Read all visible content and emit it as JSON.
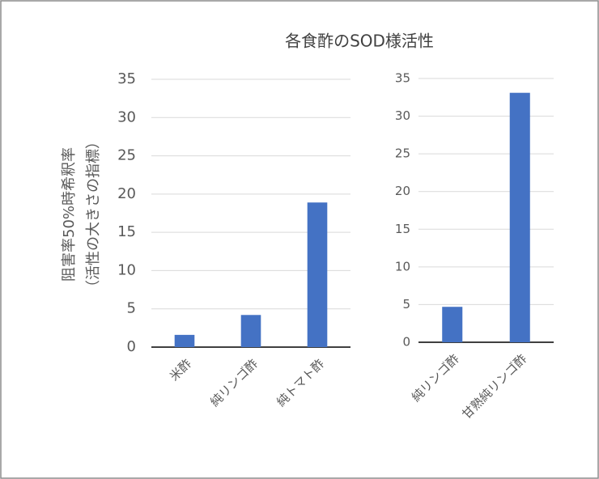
{
  "chart_data": [
    {
      "type": "bar",
      "title": "各食酢のSOD様活性",
      "ylabel": [
        "阻害率50%時希釈率",
        "（活性の大きさの指標）"
      ],
      "categories": [
        "米酢",
        "純リンゴ酢",
        "純トマト酢"
      ],
      "values": [
        1.6,
        4.2,
        18.9
      ],
      "color": "#4472c4",
      "ylim": [
        0,
        35
      ],
      "yticks": [
        0,
        5,
        10,
        15,
        20,
        25,
        30,
        35
      ],
      "grid": true
    },
    {
      "type": "bar",
      "categories": [
        "純リンゴ酢",
        "甘熟純リンゴ酢"
      ],
      "values": [
        4.7,
        33.1
      ],
      "color": "#4472c4",
      "ylim": [
        0,
        35
      ],
      "yticks": [
        0,
        5,
        10,
        15,
        20,
        25,
        30,
        35
      ],
      "grid": true
    }
  ]
}
